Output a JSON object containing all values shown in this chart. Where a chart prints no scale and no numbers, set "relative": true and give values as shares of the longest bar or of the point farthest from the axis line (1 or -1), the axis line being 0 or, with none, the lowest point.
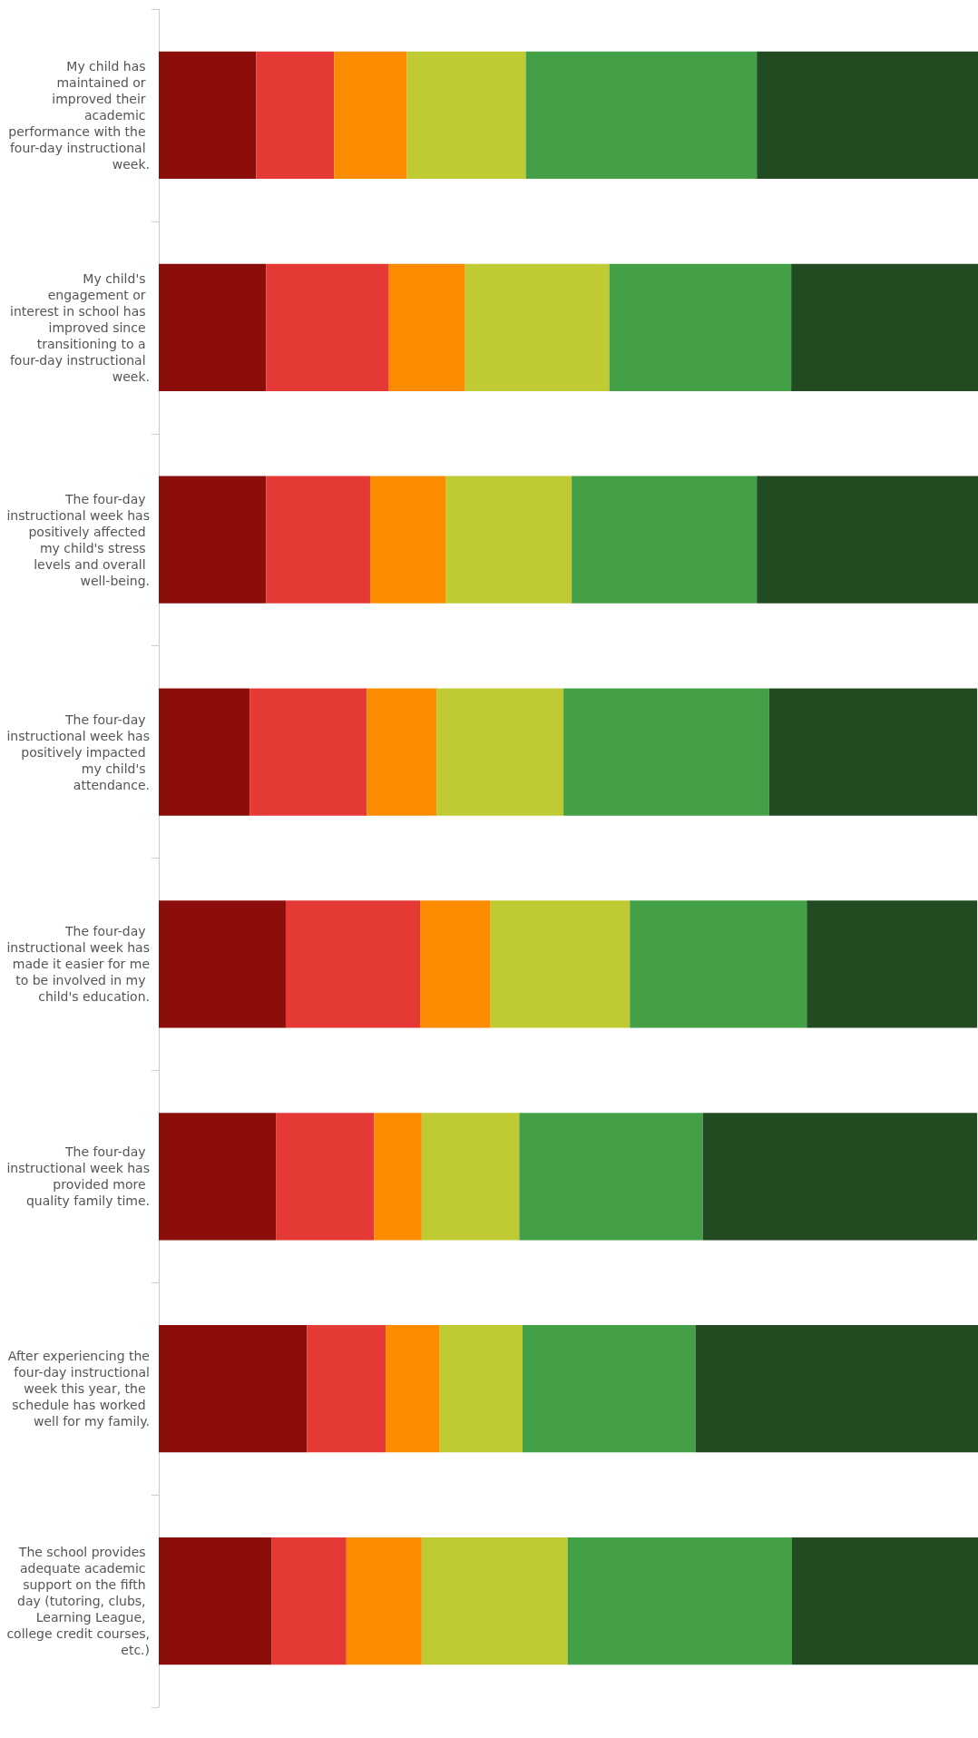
{
  "chart_data": {
    "type": "bar",
    "orientation": "horizontal",
    "stacked": true,
    "relative": true,
    "categories": [
      "My child has maintained or improved their academic performance with the four-day instructional week.",
      "My child's engagement or interest in school has improved since transitioning to a four-day instructional week.",
      "The four-day instructional week has positively affected my child's stress levels and overall well-being.",
      "The four-day instructional week has positively impacted my child's attendance.",
      "The four-day instructional week has made it easier for me to be involved in my child's education.",
      "The four-day instructional week has provided more quality family time.",
      "After experiencing the four-day instructional week this year, the schedule has worked well for my family.",
      "The school provides adequate academic support on the fifth day (tutoring, clubs, Learning League, college credit courses, etc.)"
    ],
    "series": [
      {
        "color": "#8b0e0b",
        "values": [
          0.119,
          0.131,
          0.131,
          0.111,
          0.155,
          0.143,
          0.181,
          0.138
        ]
      },
      {
        "color": "#e53935",
        "values": [
          0.095,
          0.15,
          0.127,
          0.143,
          0.164,
          0.12,
          0.096,
          0.091
        ]
      },
      {
        "color": "#fb8c00",
        "values": [
          0.089,
          0.093,
          0.092,
          0.085,
          0.086,
          0.058,
          0.066,
          0.092
        ]
      },
      {
        "color": "#c0ca33",
        "values": [
          0.145,
          0.176,
          0.154,
          0.155,
          0.17,
          0.119,
          0.101,
          0.178
        ]
      },
      {
        "color": "#43a047",
        "values": [
          0.282,
          0.222,
          0.226,
          0.251,
          0.216,
          0.224,
          0.211,
          0.274
        ]
      },
      {
        "color": "#224b22",
        "values": [
          0.27,
          0.228,
          0.27,
          0.254,
          0.208,
          0.335,
          0.345,
          0.227
        ]
      }
    ]
  }
}
